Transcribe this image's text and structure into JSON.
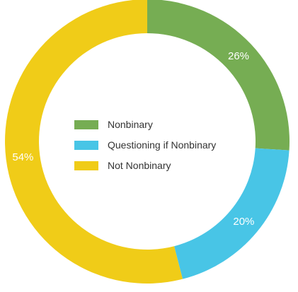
{
  "chart_data": {
    "type": "pie",
    "donut": true,
    "legend_position": "center",
    "series": [
      {
        "name": "Nonbinary",
        "value": 26,
        "label": "26%",
        "color": "#76AD53"
      },
      {
        "name": "Questioning if Nonbinary",
        "value": 20,
        "label": "20%",
        "color": "#48C5E6"
      },
      {
        "name": "Not Nonbinary",
        "value": 54,
        "label": "54%",
        "color": "#F0CC18"
      }
    ]
  }
}
